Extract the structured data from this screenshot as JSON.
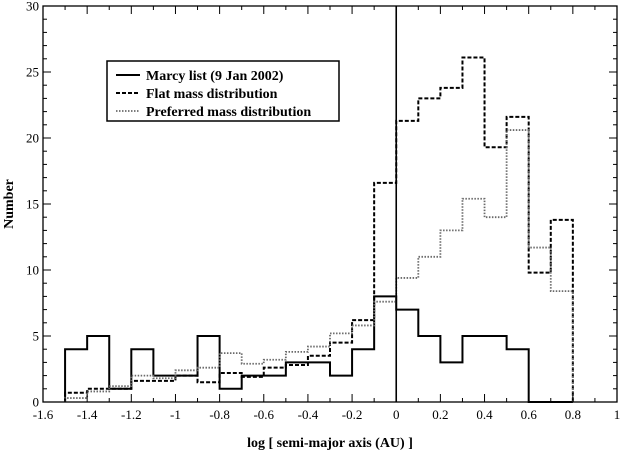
{
  "chart_data": {
    "type": "step",
    "title": "",
    "xlabel": "log [ semi-major axis (AU) ]",
    "ylabel": "Number",
    "xlim": [
      -1.6,
      1.0
    ],
    "ylim": [
      0,
      30
    ],
    "xticks": [
      -1.6,
      -1.4,
      -1.2,
      -1.0,
      -0.8,
      -0.6,
      -0.4,
      -0.2,
      0.0,
      0.2,
      0.4,
      0.6,
      0.8,
      1.0
    ],
    "xtick_labels": [
      "-1.6",
      "-1.4",
      "-1.2",
      "-1",
      "-0.8",
      "-0.6",
      "-0.4",
      "-0.2",
      "0",
      "0.2",
      "0.4",
      "0.6",
      "0.8",
      "1"
    ],
    "yticks": [
      0,
      5,
      10,
      15,
      20,
      25,
      30
    ],
    "ytick_labels": [
      "0",
      "5",
      "10",
      "15",
      "20",
      "25",
      "30"
    ],
    "vertical_line_at_x": 0,
    "bin_edges": [
      -1.5,
      -1.4,
      -1.3,
      -1.2,
      -1.1,
      -1.0,
      -0.9,
      -0.8,
      -0.7,
      -0.6,
      -0.5,
      -0.4,
      -0.3,
      -0.2,
      -0.1,
      0.0,
      0.1,
      0.2,
      0.3,
      0.4,
      0.5,
      0.6,
      0.7,
      0.8
    ],
    "legend_position": "top-left",
    "series": [
      {
        "name": "Marcy list (9 Jan 2002)",
        "style": "solid",
        "color": "#000000",
        "values": [
          4,
          5,
          1,
          4,
          2,
          2,
          5,
          1,
          2,
          2,
          3,
          3,
          2,
          4,
          8,
          7,
          5,
          3,
          5,
          5,
          4,
          0,
          0
        ]
      },
      {
        "name": "Flat mass distribution",
        "style": "dashed",
        "color": "#000000",
        "values": [
          0.7,
          1.0,
          1.0,
          1.6,
          1.6,
          2.0,
          1.5,
          2.2,
          1.9,
          2.6,
          2.8,
          3.5,
          4.5,
          6.2,
          16.6,
          21.3,
          23.0,
          23.8,
          26.1,
          19.3,
          21.6,
          9.8,
          13.8
        ]
      },
      {
        "name": "Preferred mass distribution",
        "style": "dotted",
        "color": "#6a6a6a",
        "values": [
          0.3,
          0.8,
          1.2,
          2.0,
          1.8,
          2.4,
          2.6,
          3.7,
          2.9,
          3.2,
          3.8,
          4.2,
          5.2,
          5.8,
          7.6,
          9.4,
          11.0,
          13.0,
          15.4,
          14.0,
          20.6,
          11.7,
          8.4
        ]
      }
    ]
  }
}
